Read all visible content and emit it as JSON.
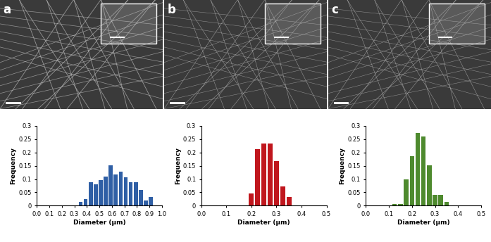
{
  "chart_data": [
    {
      "type": "histogram",
      "title": "a",
      "x_label": "Diameter (μm)",
      "y_label": "Frequency",
      "bins": [
        0.33,
        0.37,
        0.41,
        0.45,
        0.49,
        0.53,
        0.57,
        0.61,
        0.65,
        0.69,
        0.73,
        0.77,
        0.81,
        0.85,
        0.89,
        0.93,
        0.97
      ],
      "values": [
        0.013,
        0.025,
        0.087,
        0.08,
        0.095,
        0.11,
        0.153,
        0.117,
        0.127,
        0.107,
        0.087,
        0.087,
        0.06,
        0.02,
        0.033,
        0.0
      ],
      "color": "#2f5fa5",
      "xlim": [
        0,
        1.0
      ],
      "xticks": [
        {
          "value": 0,
          "label": "0.0"
        },
        0.1,
        0.2,
        0.3,
        0.4,
        0.5,
        0.6,
        0.7,
        0.8,
        0.9,
        {
          "value": 1.0,
          "label": "1.0"
        }
      ],
      "ylim": [
        0,
        0.3
      ],
      "yticks": [
        0,
        0.05,
        0.1,
        0.15,
        0.2,
        0.25,
        0.3
      ]
    },
    {
      "type": "histogram",
      "title": "b",
      "x_label": "Diameter (μm)",
      "y_label": "Frequency",
      "bins": [
        0.1875,
        0.2125,
        0.2375,
        0.2625,
        0.2875,
        0.3125,
        0.3375,
        0.3625
      ],
      "values": [
        0.045,
        0.213,
        0.233,
        0.233,
        0.167,
        0.073,
        0.033
      ],
      "color": "#c0161d",
      "xlim": [
        0,
        0.5
      ],
      "xticks": [
        {
          "value": 0,
          "label": "0.0"
        },
        0.1,
        0.2,
        0.3,
        0.4,
        0.5
      ],
      "ylim": [
        0,
        0.3
      ],
      "yticks": [
        0,
        0.05,
        0.1,
        0.15,
        0.2,
        0.25,
        0.3
      ]
    },
    {
      "type": "histogram",
      "title": "c",
      "x_label": "Diameter (μm)",
      "y_label": "Frequency",
      "bins": [
        0.1125,
        0.1375,
        0.1625,
        0.1875,
        0.2125,
        0.2375,
        0.2625,
        0.2875,
        0.3125,
        0.3375,
        0.3625
      ],
      "values": [
        0.007,
        0.007,
        0.1,
        0.187,
        0.273,
        0.26,
        0.153,
        0.04,
        0.04,
        0.013
      ],
      "color": "#4e8a2e",
      "xlim": [
        0,
        0.5
      ],
      "xticks": [
        {
          "value": 0,
          "label": "0.0"
        },
        0.1,
        0.2,
        0.3,
        0.4,
        0.5
      ],
      "ylim": [
        0,
        0.3
      ],
      "yticks": [
        0,
        0.05,
        0.1,
        0.15,
        0.2,
        0.25,
        0.3
      ]
    }
  ]
}
